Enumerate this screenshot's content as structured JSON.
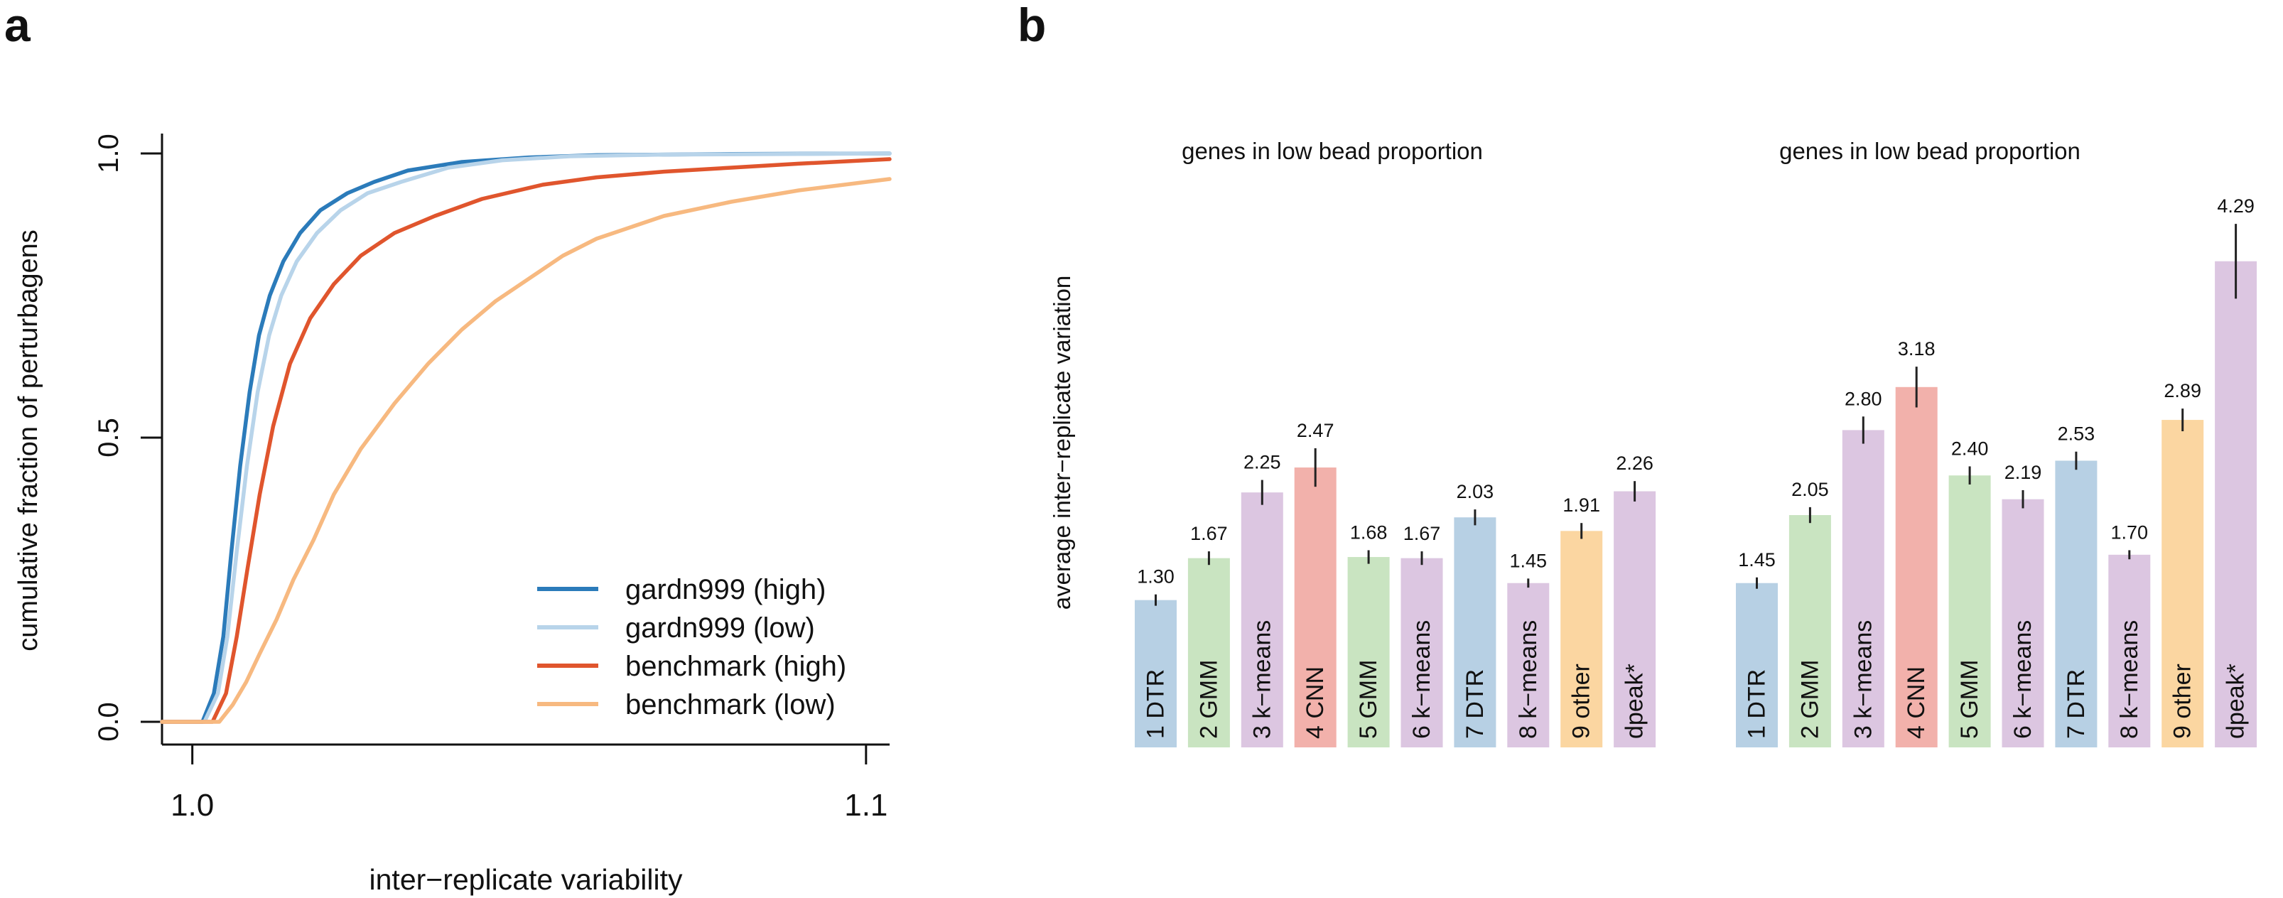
{
  "panels": {
    "a": {
      "label": "a"
    },
    "b": {
      "label": "b"
    }
  },
  "chart_data": [
    {
      "type": "line",
      "panel": "a",
      "title": "",
      "xlabel": "inter−replicate variability",
      "ylabel": "cumulative fraction of perturbagens",
      "xlim": [
        0.9955,
        1.1035
      ],
      "ylim": [
        0,
        1
      ],
      "xticks": [
        1.0,
        1.1
      ],
      "xtick_labels": [
        "1.0",
        "1.1"
      ],
      "yticks": [
        0,
        0.5,
        1
      ],
      "ytick_labels": [
        "0.0",
        "0.5",
        "1.0"
      ],
      "grid": false,
      "legend_position": "bottom-right",
      "series": [
        {
          "name": "gardn999 (high)",
          "color": "#2b7bba",
          "x": [
            0.9955,
            1.0015,
            1.0032,
            1.0046,
            1.0058,
            1.0071,
            1.0085,
            1.0099,
            1.0115,
            1.0135,
            1.016,
            1.019,
            1.023,
            1.027,
            1.032,
            1.04,
            1.05,
            1.06,
            1.08,
            1.1035
          ],
          "y": [
            0,
            0,
            0.05,
            0.15,
            0.3,
            0.45,
            0.58,
            0.68,
            0.75,
            0.81,
            0.86,
            0.9,
            0.93,
            0.95,
            0.97,
            0.985,
            0.993,
            0.997,
            0.999,
            1.0
          ]
        },
        {
          "name": "gardn999 (low)",
          "color": "#b8d4ea",
          "x": [
            0.9955,
            1.0018,
            1.0038,
            1.0052,
            1.0066,
            1.0081,
            1.0097,
            1.0114,
            1.0132,
            1.0155,
            1.0185,
            1.022,
            1.026,
            1.031,
            1.038,
            1.046,
            1.056,
            1.07,
            1.09,
            1.1035
          ],
          "y": [
            0,
            0,
            0.05,
            0.15,
            0.3,
            0.45,
            0.58,
            0.68,
            0.75,
            0.81,
            0.86,
            0.9,
            0.93,
            0.95,
            0.975,
            0.988,
            0.995,
            0.998,
            0.999,
            1.0
          ]
        },
        {
          "name": "benchmark (high)",
          "color": "#e0552d",
          "x": [
            0.9955,
            1.003,
            1.005,
            1.0066,
            1.0082,
            1.01,
            1.012,
            1.0145,
            1.0175,
            1.021,
            1.025,
            1.03,
            1.036,
            1.043,
            1.052,
            1.06,
            1.07,
            1.08,
            1.09,
            1.1035
          ],
          "y": [
            0,
            0,
            0.05,
            0.15,
            0.27,
            0.4,
            0.52,
            0.63,
            0.71,
            0.77,
            0.82,
            0.86,
            0.89,
            0.92,
            0.945,
            0.958,
            0.968,
            0.975,
            0.982,
            0.99
          ]
        },
        {
          "name": "benchmark (low)",
          "color": "#f7b980",
          "x": [
            0.9955,
            1.004,
            1.006,
            1.008,
            1.01,
            1.0125,
            1.015,
            1.018,
            1.021,
            1.025,
            1.03,
            1.035,
            1.04,
            1.045,
            1.05,
            1.055,
            1.06,
            1.07,
            1.08,
            1.09,
            1.1035
          ],
          "y": [
            0,
            0,
            0.03,
            0.07,
            0.12,
            0.18,
            0.25,
            0.32,
            0.4,
            0.48,
            0.56,
            0.63,
            0.69,
            0.74,
            0.78,
            0.82,
            0.85,
            0.89,
            0.915,
            0.935,
            0.955
          ]
        }
      ]
    },
    {
      "type": "bar",
      "panel": "b",
      "title": "genes in low bead proportion",
      "ylabel": "average inter−replicate variation",
      "ylim": [
        0,
        4.5
      ],
      "categories": [
        "1 DTR",
        "2 GMM",
        "3 k−means",
        "4 CNN",
        "5 GMM",
        "6 k−means",
        "7 DTR",
        "8 k−means",
        "9 other",
        "dpeak*"
      ],
      "values": [
        1.3,
        1.67,
        2.25,
        2.47,
        1.68,
        1.67,
        2.03,
        1.45,
        1.91,
        2.26
      ],
      "labels": [
        "1.30",
        "1.67",
        "2.25",
        "2.47",
        "1.68",
        "1.67",
        "2.03",
        "1.45",
        "1.91",
        "2.26"
      ],
      "errors": [
        0.05,
        0.06,
        0.11,
        0.17,
        0.06,
        0.06,
        0.07,
        0.04,
        0.07,
        0.09
      ],
      "colors": [
        "#b7d0e4",
        "#c9e4c1",
        "#dcc6e1",
        "#f2b1ab",
        "#c9e4c1",
        "#dcc6e1",
        "#b7d0e4",
        "#dcc6e1",
        "#fbd6a1",
        "#dcc6e1"
      ]
    },
    {
      "type": "bar",
      "panel": "b",
      "title": "genes in low bead proportion",
      "ylim": [
        0,
        4.5
      ],
      "categories": [
        "1 DTR",
        "2 GMM",
        "3 k−means",
        "4 CNN",
        "5 GMM",
        "6 k−means",
        "7 DTR",
        "8 k−means",
        "9 other",
        "dpeak*"
      ],
      "values": [
        1.45,
        2.05,
        2.8,
        3.18,
        2.4,
        2.19,
        2.53,
        1.7,
        2.89,
        4.29
      ],
      "labels": [
        "1.45",
        "2.05",
        "2.80",
        "3.18",
        "2.40",
        "2.19",
        "2.53",
        "1.70",
        "2.89",
        "4.29"
      ],
      "errors": [
        0.05,
        0.07,
        0.12,
        0.18,
        0.08,
        0.08,
        0.08,
        0.04,
        0.1,
        0.33
      ],
      "colors": [
        "#b7d0e4",
        "#c9e4c1",
        "#dcc6e1",
        "#f2b1ab",
        "#c9e4c1",
        "#dcc6e1",
        "#b7d0e4",
        "#dcc6e1",
        "#fbd6a1",
        "#dcc6e1"
      ]
    }
  ]
}
